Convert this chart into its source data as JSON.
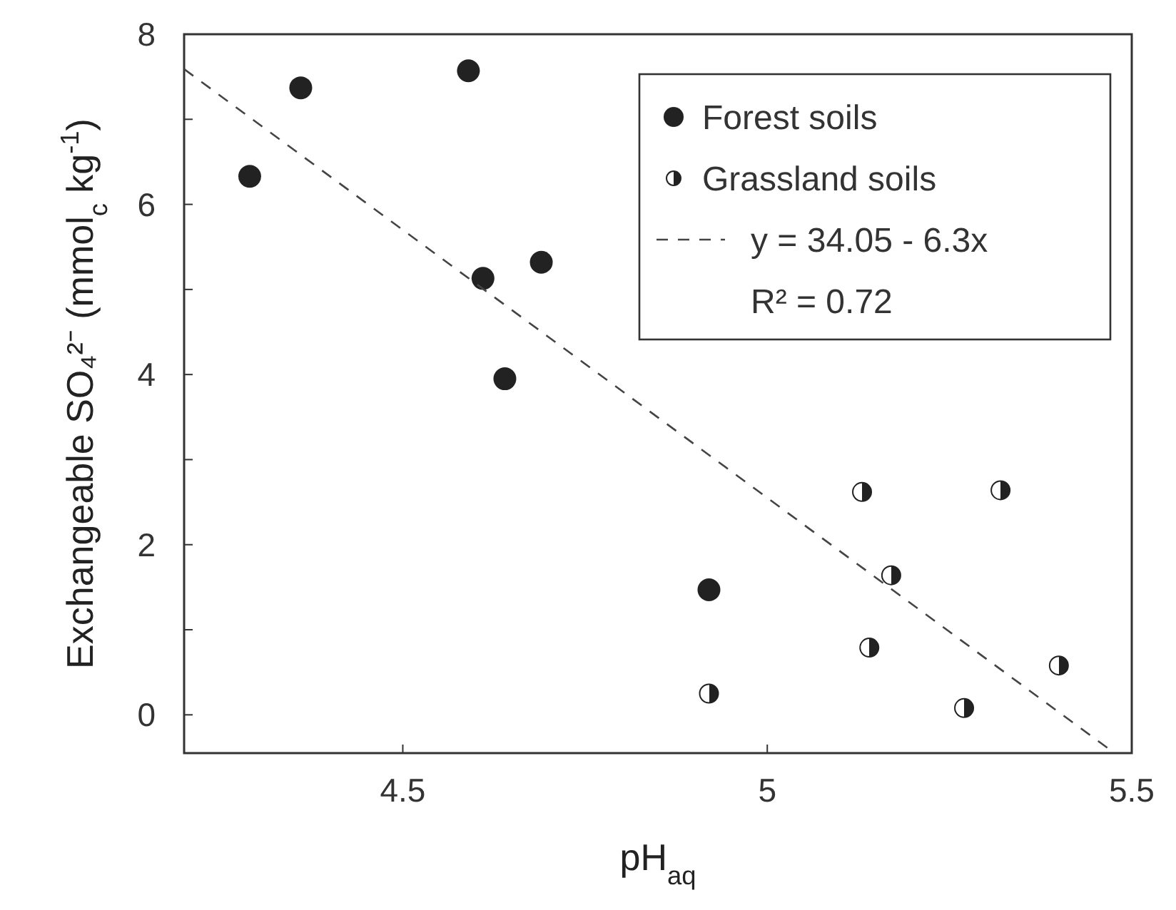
{
  "chart_data": {
    "type": "scatter",
    "xlabel": "pH$_{aq}$",
    "ylabel": "Exchangeable SO₄²⁻ (mmol$_{c}$ kg$^{-1}$)",
    "xlim": [
      4.2,
      5.5
    ],
    "xticks": [
      4.5,
      5,
      5.5
    ],
    "ylim": [
      -0.45,
      8
    ],
    "yticks": [
      0,
      {
        "value": 1,
        "label": null
      },
      2,
      {
        "value": 3,
        "label": null
      },
      4,
      {
        "value": 5,
        "label": null
      },
      6,
      {
        "value": 7,
        "label": null
      },
      8
    ],
    "grid": false,
    "legend": "top right",
    "marker": "circle",
    "series": [
      {
        "name": "Forest soils",
        "color": "#222222",
        "x": [
          4.29,
          4.36,
          4.59,
          4.61,
          4.69,
          4.64,
          4.92
        ],
        "values": [
          6.33,
          7.37,
          7.57,
          5.13,
          5.32,
          3.95,
          1.47
        ]
      },
      {
        "name": "Grassland soils",
        "color": "#222222",
        "x": [
          4.92,
          5.13,
          5.32,
          5.17,
          5.14,
          5.4,
          5.27
        ],
        "values": [
          0.25,
          2.62,
          2.64,
          1.64,
          0.79,
          0.58,
          0.08
        ]
      },
      {
        "name": "y = 34.05 - 6.3x",
        "type": "line",
        "color": "#444444",
        "line_style": "dashed",
        "marker": "none",
        "x": [
          4.2,
          5.47
        ],
        "values": [
          7.59,
          -0.41
        ]
      }
    ],
    "annotations": [
      "R² = 0.72"
    ]
  }
}
